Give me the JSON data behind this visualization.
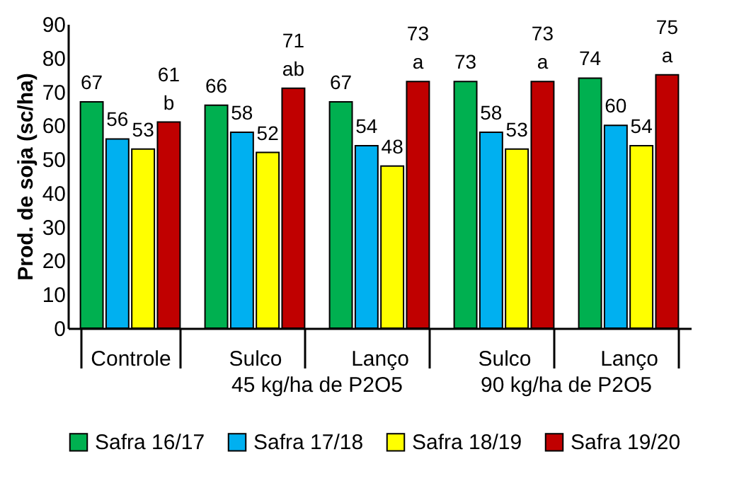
{
  "chart_data": {
    "type": "bar",
    "ylabel": "Prod. de soja (sc/ha)",
    "categories": [
      "Controle",
      "Sulco",
      "Lanço",
      "Sulco",
      "Lanço"
    ],
    "series": [
      {
        "name": "Safra 16/17",
        "color": "#00b050",
        "values": [
          67,
          66,
          67,
          73,
          74
        ]
      },
      {
        "name": "Safra 17/18",
        "color": "#00b0f0",
        "values": [
          56,
          58,
          54,
          58,
          60
        ]
      },
      {
        "name": "Safra 18/19",
        "color": "#ffff00",
        "values": [
          53,
          52,
          48,
          53,
          54
        ]
      },
      {
        "name": "Safra 19/20",
        "color": "#c00000",
        "values": [
          61,
          71,
          73,
          73,
          75
        ],
        "value_labels": [
          "61\nb",
          "71\nab",
          "73\na",
          "73\na",
          "75\na"
        ]
      }
    ],
    "annotations": [
      "45 kg/ha de P2O5",
      "90 kg/ha de P2O5"
    ],
    "ylim": [
      0,
      90
    ],
    "yticks": [
      0,
      10,
      20,
      30,
      40,
      50,
      60,
      70,
      80,
      90
    ],
    "data_labels": true,
    "grid": false,
    "legend": "bottom"
  }
}
